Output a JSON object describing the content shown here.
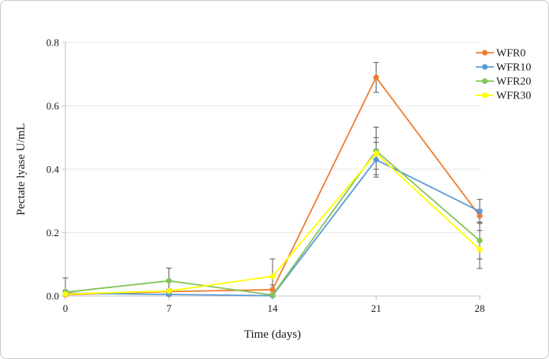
{
  "chart_data": {
    "type": "line",
    "title": "",
    "xlabel": "Time (days)",
    "ylabel": "Pectate lyase U/mL",
    "x": [
      0,
      7,
      14,
      21,
      28
    ],
    "xtick_labels": [
      "0",
      "7",
      "14",
      "21",
      "28"
    ],
    "yticks": [
      0.0,
      0.2,
      0.4,
      0.6,
      0.8
    ],
    "ytick_labels": [
      "0.0",
      "0.2",
      "0.4",
      "0.6",
      "0.8"
    ],
    "xlim": [
      0,
      28
    ],
    "ylim": [
      0,
      0.8
    ],
    "grid": "horizontal",
    "legend_position": "top-right",
    "error_bar_color": "#595959",
    "series": [
      {
        "name": "WFR0",
        "color": "#ED7D31",
        "values": [
          0.004,
          0.014,
          0.02,
          0.69,
          0.253
        ],
        "errors": [
          0.006,
          0.006,
          0.015,
          0.047,
          0.02
        ]
      },
      {
        "name": "WFR10",
        "color": "#5B9BD5",
        "values": [
          0.009,
          0.005,
          0.001,
          0.43,
          0.267
        ],
        "errors": [
          0.01,
          0.004,
          0.003,
          0.055,
          0.038
        ]
      },
      {
        "name": "WFR20",
        "color": "#84C45A",
        "values": [
          0.012,
          0.048,
          0.003,
          0.458,
          0.175
        ],
        "errors": [
          0.045,
          0.04,
          0.004,
          0.075,
          0.058
        ]
      },
      {
        "name": "WFR30",
        "color": "#FFFF00",
        "values": [
          0.006,
          0.016,
          0.062,
          0.45,
          0.147
        ],
        "errors": [
          0.005,
          0.006,
          0.055,
          0.05,
          0.06
        ]
      }
    ]
  }
}
